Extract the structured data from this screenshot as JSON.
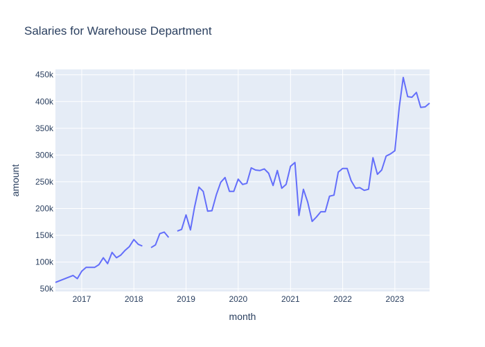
{
  "chart_data": {
    "type": "line",
    "title": "Salaries for Warehouse Department",
    "xlabel": "month",
    "ylabel": "amount",
    "x_range": [
      "2016-07-01",
      "2023-09-01"
    ],
    "y_range": [
      45000,
      460000
    ],
    "x_ticks": [
      {
        "label": "2017",
        "date": "2017-01-01"
      },
      {
        "label": "2018",
        "date": "2018-01-01"
      },
      {
        "label": "2019",
        "date": "2019-01-01"
      },
      {
        "label": "2020",
        "date": "2020-01-01"
      },
      {
        "label": "2021",
        "date": "2021-01-01"
      },
      {
        "label": "2022",
        "date": "2022-01-01"
      },
      {
        "label": "2023",
        "date": "2023-01-01"
      }
    ],
    "y_ticks": [
      {
        "label": "50k",
        "value": 50000
      },
      {
        "label": "100k",
        "value": 100000
      },
      {
        "label": "150k",
        "value": 150000
      },
      {
        "label": "200k",
        "value": 200000
      },
      {
        "label": "250k",
        "value": 250000
      },
      {
        "label": "300k",
        "value": 300000
      },
      {
        "label": "350k",
        "value": 350000
      },
      {
        "label": "400k",
        "value": 400000
      },
      {
        "label": "450k",
        "value": 450000
      }
    ],
    "grid": true,
    "colors": {
      "line": "#636efa",
      "plot_bg": "#e5ecf6",
      "grid": "#ffffff",
      "text": "#2a3f5f"
    },
    "series": [
      {
        "x": [
          "2016-07-01",
          "2016-11-01",
          "2016-12-01",
          "2017-01-01",
          "2017-02-01",
          "2017-03-01",
          "2017-04-01",
          "2017-05-01",
          "2017-06-01",
          "2017-07-01",
          "2017-08-01",
          "2017-09-01",
          "2017-10-01",
          "2017-11-01",
          "2017-12-01",
          "2018-01-01",
          "2018-02-01",
          "2018-03-01",
          "2018-04-01",
          "2018-05-01",
          "2018-06-01",
          "2018-07-01",
          "2018-08-01",
          "2018-09-01",
          "2018-10-01",
          "2018-11-01",
          "2018-12-01",
          "2019-01-01",
          "2019-02-01",
          "2019-03-01",
          "2019-04-01",
          "2019-05-01",
          "2019-06-01",
          "2019-07-01",
          "2019-08-01",
          "2019-09-01",
          "2019-10-01",
          "2019-11-01",
          "2019-12-01",
          "2020-01-01",
          "2020-02-01",
          "2020-03-01",
          "2020-04-01",
          "2020-05-01",
          "2020-06-01",
          "2020-07-01",
          "2020-08-01",
          "2020-09-01",
          "2020-10-01",
          "2020-11-01",
          "2020-12-01",
          "2021-01-01",
          "2021-02-01",
          "2021-03-01",
          "2021-04-01",
          "2021-05-01",
          "2021-06-01",
          "2021-07-01",
          "2021-08-01",
          "2021-09-01",
          "2021-10-01",
          "2021-11-01",
          "2021-12-01",
          "2022-01-01",
          "2022-02-01",
          "2022-03-01",
          "2022-04-01",
          "2022-05-01",
          "2022-06-01",
          "2022-07-01",
          "2022-08-01",
          "2022-09-01",
          "2022-10-01",
          "2022-11-01",
          "2022-12-01",
          "2023-01-01",
          "2023-02-01",
          "2023-03-01",
          "2023-04-01",
          "2023-05-01",
          "2023-06-01",
          "2023-07-01",
          "2023-08-01",
          "2023-09-01"
        ],
        "y": [
          62000,
          75000,
          69000,
          83000,
          90000,
          90000,
          90000,
          95000,
          108000,
          97000,
          118000,
          108000,
          113000,
          122000,
          129000,
          142000,
          133000,
          130000,
          null,
          127000,
          132000,
          153000,
          156000,
          146000,
          null,
          158000,
          161000,
          188000,
          160000,
          202000,
          240000,
          232000,
          195000,
          196000,
          226000,
          249000,
          258000,
          232000,
          232000,
          255000,
          245000,
          247000,
          276000,
          272000,
          271000,
          274000,
          266000,
          243000,
          271000,
          238000,
          245000,
          279000,
          286000,
          187000,
          236000,
          212000,
          176000,
          184000,
          194000,
          194000,
          223000,
          225000,
          268000,
          275000,
          275000,
          252000,
          238000,
          239000,
          234000,
          236000,
          295000,
          264000,
          272000,
          298000,
          302000,
          308000,
          390000,
          445000,
          409000,
          408000,
          417000,
          389000,
          390000,
          397000
        ]
      }
    ]
  }
}
